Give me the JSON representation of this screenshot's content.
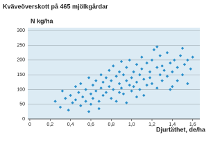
{
  "chart_data": {
    "type": "scatter",
    "title": "Kväveöverskott på 465 mjölkgårdar",
    "y_label": "N kg/ha",
    "x_label": "Djurtäthet, de/ha",
    "color": "#2a8fcb",
    "background": "#dcebf4",
    "grid": true,
    "x": [
      0.25,
      0.3,
      0.32,
      0.35,
      0.38,
      0.4,
      0.42,
      0.45,
      0.45,
      0.48,
      0.5,
      0.5,
      0.52,
      0.55,
      0.55,
      0.58,
      0.6,
      0.6,
      0.62,
      0.62,
      0.65,
      0.65,
      0.68,
      0.7,
      0.7,
      0.72,
      0.72,
      0.75,
      0.75,
      0.78,
      0.78,
      0.8,
      0.8,
      0.82,
      0.82,
      0.85,
      0.85,
      0.88,
      0.88,
      0.9,
      0.9,
      0.92,
      0.92,
      0.95,
      0.95,
      0.98,
      0.98,
      1.0,
      1.0,
      1.02,
      1.02,
      1.05,
      1.05,
      1.08,
      1.08,
      1.1,
      1.1,
      1.12,
      1.15,
      1.15,
      1.18,
      1.18,
      1.2,
      1.2,
      1.22,
      1.25,
      1.25,
      1.28,
      1.28,
      1.3,
      1.3,
      1.32,
      1.35,
      1.35,
      1.38,
      1.4,
      1.4,
      1.42,
      1.45,
      1.45,
      1.48,
      1.5,
      1.5,
      1.52,
      1.55,
      1.55,
      1.58,
      1.6,
      0.68,
      0.88,
      1.05,
      1.25,
      1.38,
      0.58,
      0.95,
      1.12
    ],
    "values": [
      60,
      40,
      95,
      70,
      30,
      80,
      55,
      110,
      65,
      90,
      45,
      120,
      75,
      100,
      60,
      140,
      85,
      50,
      115,
      70,
      130,
      95,
      60,
      150,
      105,
      125,
      80,
      140,
      90,
      165,
      110,
      130,
      70,
      180,
      100,
      145,
      60,
      160,
      120,
      195,
      105,
      150,
      85,
      175,
      130,
      115,
      200,
      140,
      95,
      160,
      110,
      185,
      125,
      150,
      100,
      170,
      210,
      135,
      190,
      115,
      160,
      140,
      200,
      120,
      235,
      175,
      105,
      150,
      215,
      180,
      130,
      165,
      145,
      225,
      190,
      160,
      110,
      200,
      175,
      130,
      215,
      150,
      240,
      185,
      120,
      200,
      170,
      210,
      35,
      90,
      75,
      245,
      100,
      25,
      55,
      80
    ],
    "xlim": [
      -0.02,
      1.67
    ],
    "ylim": [
      0,
      310
    ],
    "xticks": [
      0,
      {
        "value": 0.2,
        "label": "0,2"
      },
      {
        "value": 0.4,
        "label": "0,4"
      },
      {
        "value": 0.6,
        "label": "0,6"
      },
      {
        "value": 0.8,
        "label": "0,8"
      },
      {
        "value": 1,
        "label": "1,0"
      },
      {
        "value": 1.2,
        "label": "1,2"
      },
      {
        "value": 1.4,
        "label": "1,4"
      },
      {
        "value": 1.6,
        "label": "1,6"
      }
    ],
    "yticks": [
      0,
      50,
      100,
      150,
      200,
      250,
      300
    ]
  }
}
